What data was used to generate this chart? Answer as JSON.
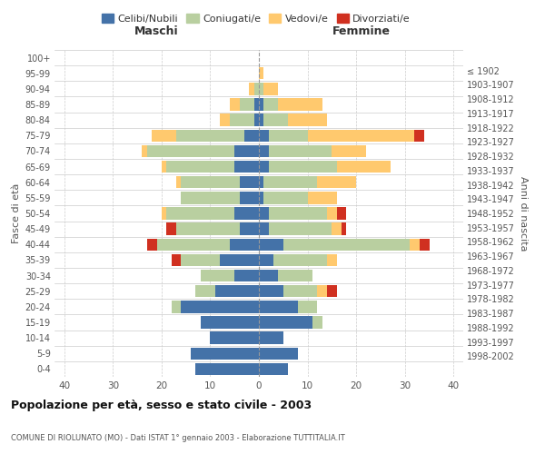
{
  "age_groups": [
    "0-4",
    "5-9",
    "10-14",
    "15-19",
    "20-24",
    "25-29",
    "30-34",
    "35-39",
    "40-44",
    "45-49",
    "50-54",
    "55-59",
    "60-64",
    "65-69",
    "70-74",
    "75-79",
    "80-84",
    "85-89",
    "90-94",
    "95-99",
    "100+"
  ],
  "birth_years": [
    "1998-2002",
    "1993-1997",
    "1988-1992",
    "1983-1987",
    "1978-1982",
    "1973-1977",
    "1968-1972",
    "1963-1967",
    "1958-1962",
    "1953-1957",
    "1948-1952",
    "1943-1947",
    "1938-1942",
    "1933-1937",
    "1928-1932",
    "1923-1927",
    "1918-1922",
    "1913-1917",
    "1908-1912",
    "1903-1907",
    "≤ 1902"
  ],
  "maschi": {
    "celibi": [
      13,
      14,
      10,
      12,
      16,
      9,
      5,
      8,
      6,
      4,
      5,
      4,
      4,
      5,
      5,
      3,
      1,
      1,
      0,
      0,
      0
    ],
    "coniugati": [
      0,
      0,
      0,
      0,
      2,
      4,
      7,
      8,
      15,
      13,
      14,
      12,
      12,
      14,
      18,
      14,
      5,
      3,
      1,
      0,
      0
    ],
    "vedovi": [
      0,
      0,
      0,
      0,
      0,
      0,
      0,
      0,
      0,
      0,
      1,
      0,
      1,
      1,
      1,
      5,
      2,
      2,
      1,
      0,
      0
    ],
    "divorziati": [
      0,
      0,
      0,
      0,
      0,
      0,
      0,
      2,
      2,
      2,
      0,
      0,
      0,
      0,
      0,
      0,
      0,
      0,
      0,
      0,
      0
    ]
  },
  "femmine": {
    "nubili": [
      6,
      8,
      5,
      11,
      8,
      5,
      4,
      3,
      5,
      2,
      2,
      1,
      1,
      2,
      2,
      2,
      1,
      1,
      0,
      0,
      0
    ],
    "coniugate": [
      0,
      0,
      0,
      2,
      4,
      7,
      7,
      11,
      26,
      13,
      12,
      9,
      11,
      14,
      13,
      8,
      5,
      3,
      1,
      0,
      0
    ],
    "vedove": [
      0,
      0,
      0,
      0,
      0,
      2,
      0,
      2,
      2,
      2,
      2,
      6,
      8,
      11,
      7,
      22,
      8,
      9,
      3,
      1,
      0
    ],
    "divorziate": [
      0,
      0,
      0,
      0,
      0,
      2,
      0,
      0,
      2,
      1,
      2,
      0,
      0,
      0,
      0,
      2,
      0,
      0,
      0,
      0,
      0
    ]
  },
  "colors": {
    "celibi": "#4472a8",
    "coniugati": "#b9cfa0",
    "vedovi": "#ffc96e",
    "divorziati": "#d03020"
  },
  "xlim": 42,
  "title": "Popolazione per età, sesso e stato civile - 2003",
  "subtitle": "COMUNE DI RIOLUNATO (MO) - Dati ISTAT 1° gennaio 2003 - Elaborazione TUTTITALIA.IT",
  "ylabel_left": "Fasce di età",
  "ylabel_right": "Anni di nascita",
  "xlabel_maschi": "Maschi",
  "xlabel_femmine": "Femmine",
  "legend_labels": [
    "Celibi/Nubili",
    "Coniugati/e",
    "Vedovi/e",
    "Divorziati/e"
  ],
  "bg_color": "#ffffff",
  "grid_color": "#cccccc"
}
